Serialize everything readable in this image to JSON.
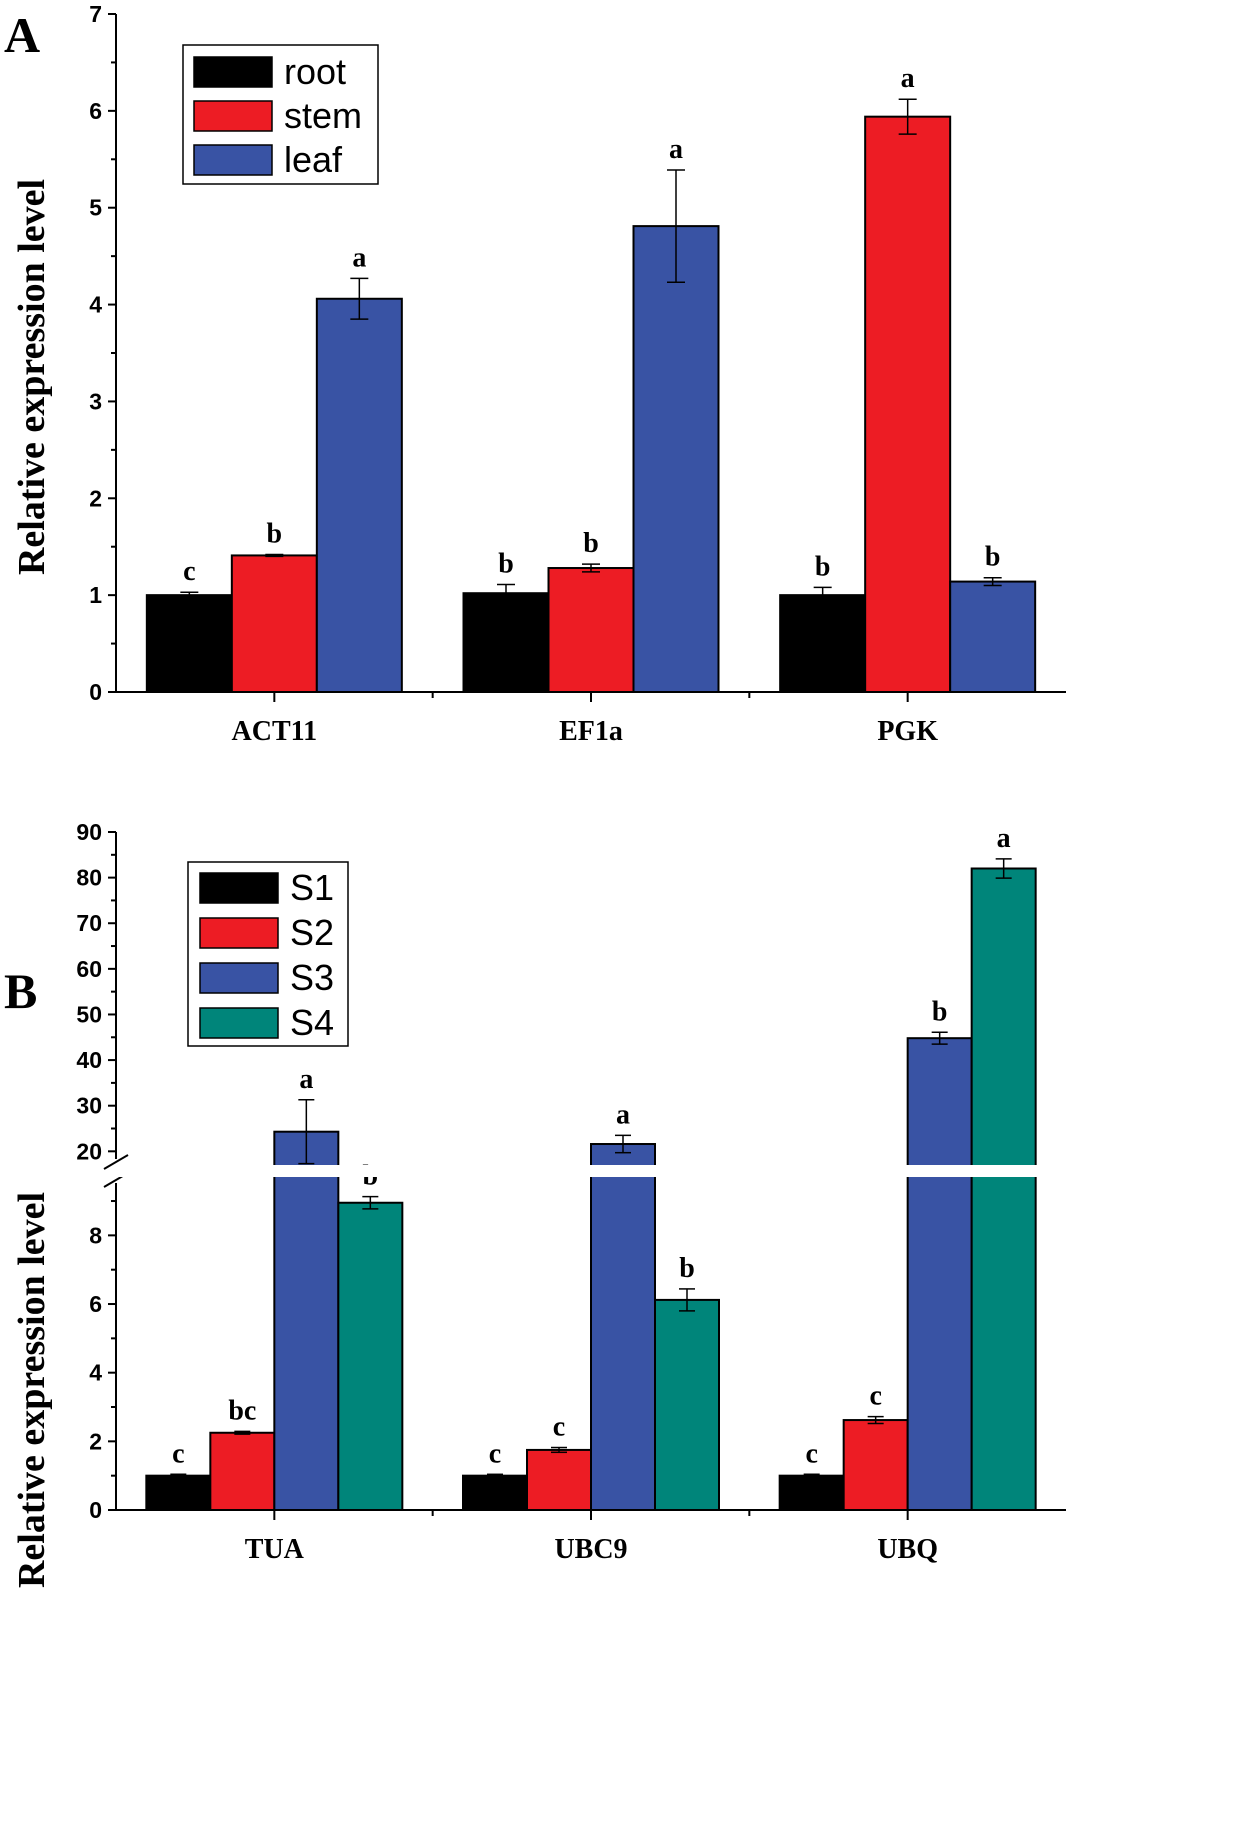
{
  "panels": [
    {
      "letter": "A",
      "ylabel": "Relative expression level",
      "colors": [
        "#000000",
        "#ed1c24",
        "#3953a4"
      ],
      "chart_data": {
        "type": "bar",
        "categories": [
          "ACT11",
          "EF1a",
          "PGK"
        ],
        "series": [
          {
            "name": "root",
            "values": [
              1.0,
              1.02,
              1.0
            ],
            "errors": [
              0.03,
              0.09,
              0.08
            ],
            "sig": [
              "c",
              "b",
              "b"
            ]
          },
          {
            "name": "stem",
            "values": [
              1.41,
              1.28,
              5.94
            ],
            "errors": [
              0.01,
              0.04,
              0.18
            ],
            "sig": [
              "b",
              "b",
              "a"
            ]
          },
          {
            "name": "leaf",
            "values": [
              4.06,
              4.81,
              1.14
            ],
            "errors": [
              0.21,
              0.58,
              0.04
            ],
            "sig": [
              "a",
              "a",
              "b"
            ]
          }
        ],
        "ylim": [
          0,
          7
        ],
        "yticks": [
          "0",
          "1",
          "2",
          "3",
          "4",
          "5",
          "6",
          "7"
        ],
        "ylabel": "Relative expression level",
        "legend": "top-left"
      }
    },
    {
      "letter": "B",
      "ylabel": "Relative expression level",
      "colors": [
        "#000000",
        "#ed1c24",
        "#3953a4",
        "#00857a"
      ],
      "chart_data": {
        "type": "bar",
        "categories": [
          "TUA",
          "UBC9",
          "UBQ"
        ],
        "series": [
          {
            "name": "S1",
            "values": [
              1.0,
              1.0,
              1.0
            ],
            "errors": [
              0.04,
              0.04,
              0.04
            ],
            "sig": [
              "c",
              "c",
              "c"
            ]
          },
          {
            "name": "S2",
            "values": [
              2.25,
              1.75,
              2.62
            ],
            "errors": [
              0.04,
              0.07,
              0.1
            ],
            "sig": [
              "bc",
              "c",
              "c"
            ]
          },
          {
            "name": "S3",
            "values": [
              24.3,
              21.6,
              44.8
            ],
            "errors": [
              7.0,
              1.9,
              1.3
            ],
            "sig": [
              "a",
              "a",
              "b"
            ]
          },
          {
            "name": "S4",
            "values": [
              8.95,
              6.12,
              82.0
            ],
            "errors": [
              0.18,
              0.32,
              2.1
            ],
            "sig": [
              "b",
              "b",
              "a"
            ]
          }
        ],
        "axis_break": {
          "lower_range": [
            0,
            9.7
          ],
          "upper_range": [
            17,
            90
          ]
        },
        "yticks_lower": [
          "0",
          "2",
          "4",
          "6",
          "8"
        ],
        "yticks_upper": [
          "20",
          "30",
          "40",
          "50",
          "60",
          "70",
          "80",
          "90"
        ],
        "ylabel": "Relative expression level",
        "legend": "top-left"
      }
    }
  ]
}
